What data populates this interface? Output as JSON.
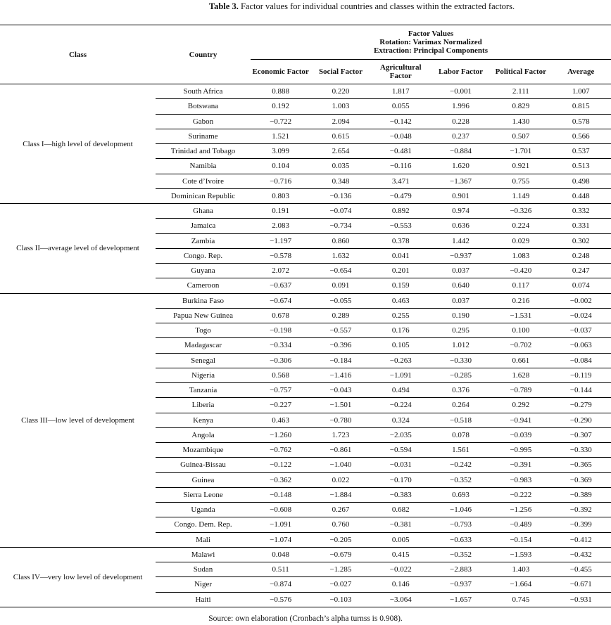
{
  "title": {
    "label": "Table 3.",
    "text": "Factor values for individual countries and classes within the extracted factors."
  },
  "header": {
    "class": "Class",
    "country": "Country",
    "factor_values": [
      "Factor Values",
      "Rotation: Varimax Normalized",
      "Extraction: Principal Components"
    ],
    "columns": [
      "Economic Factor",
      "Social Factor",
      "Agricultural Factor",
      "Labor Factor",
      "Political Factor",
      "Average"
    ]
  },
  "groups": [
    {
      "class": "Class I—high level of development",
      "rows": [
        {
          "country": "South Africa",
          "values": [
            "0.888",
            "0.220",
            "1.817",
            "−0.001",
            "2.111",
            "1.007"
          ]
        },
        {
          "country": "Botswana",
          "values": [
            "0.192",
            "1.003",
            "0.055",
            "1.996",
            "0.829",
            "0.815"
          ]
        },
        {
          "country": "Gabon",
          "values": [
            "−0.722",
            "2.094",
            "−0.142",
            "0.228",
            "1.430",
            "0.578"
          ]
        },
        {
          "country": "Suriname",
          "values": [
            "1.521",
            "0.615",
            "−0.048",
            "0.237",
            "0.507",
            "0.566"
          ]
        },
        {
          "country": "Trinidad and Tobago",
          "values": [
            "3.099",
            "2.654",
            "−0.481",
            "−0.884",
            "−1.701",
            "0.537"
          ]
        },
        {
          "country": "Namibia",
          "values": [
            "0.104",
            "0.035",
            "−0.116",
            "1.620",
            "0.921",
            "0.513"
          ]
        },
        {
          "country": "Cote d’Ivoire",
          "values": [
            "−0.716",
            "0.348",
            "3.471",
            "−1.367",
            "0.755",
            "0.498"
          ]
        },
        {
          "country": "Dominican Republic",
          "values": [
            "0.803",
            "−0.136",
            "−0.479",
            "0.901",
            "1.149",
            "0.448"
          ]
        }
      ]
    },
    {
      "class": "Class II—average level of development",
      "rows": [
        {
          "country": "Ghana",
          "values": [
            "0.191",
            "−0.074",
            "0.892",
            "0.974",
            "−0.326",
            "0.332"
          ]
        },
        {
          "country": "Jamaica",
          "values": [
            "2.083",
            "−0.734",
            "−0.553",
            "0.636",
            "0.224",
            "0.331"
          ]
        },
        {
          "country": "Zambia",
          "values": [
            "−1.197",
            "0.860",
            "0.378",
            "1.442",
            "0.029",
            "0.302"
          ]
        },
        {
          "country": "Congo. Rep.",
          "values": [
            "−0.578",
            "1.632",
            "0.041",
            "−0.937",
            "1.083",
            "0.248"
          ]
        },
        {
          "country": "Guyana",
          "values": [
            "2.072",
            "−0.654",
            "0.201",
            "0.037",
            "−0.420",
            "0.247"
          ]
        },
        {
          "country": "Cameroon",
          "values": [
            "−0.637",
            "0.091",
            "0.159",
            "0.640",
            "0.117",
            "0.074"
          ]
        }
      ]
    },
    {
      "class": "Class III—low level of development",
      "rows": [
        {
          "country": "Burkina Faso",
          "values": [
            "−0.674",
            "−0.055",
            "0.463",
            "0.037",
            "0.216",
            "−0.002"
          ]
        },
        {
          "country": "Papua New Guinea",
          "values": [
            "0.678",
            "0.289",
            "0.255",
            "0.190",
            "−1.531",
            "−0.024"
          ]
        },
        {
          "country": "Togo",
          "values": [
            "−0.198",
            "−0.557",
            "0.176",
            "0.295",
            "0.100",
            "−0.037"
          ]
        },
        {
          "country": "Madagascar",
          "values": [
            "−0.334",
            "−0.396",
            "0.105",
            "1.012",
            "−0.702",
            "−0.063"
          ]
        },
        {
          "country": "Senegal",
          "values": [
            "−0.306",
            "−0.184",
            "−0.263",
            "−0.330",
            "0.661",
            "−0.084"
          ]
        },
        {
          "country": "Nigeria",
          "values": [
            "0.568",
            "−1.416",
            "−1.091",
            "−0.285",
            "1.628",
            "−0.119"
          ]
        },
        {
          "country": "Tanzania",
          "values": [
            "−0.757",
            "−0.043",
            "0.494",
            "0.376",
            "−0.789",
            "−0.144"
          ]
        },
        {
          "country": "Liberia",
          "values": [
            "−0.227",
            "−1.501",
            "−0.224",
            "0.264",
            "0.292",
            "−0.279"
          ]
        },
        {
          "country": "Kenya",
          "values": [
            "0.463",
            "−0.780",
            "0.324",
            "−0.518",
            "−0.941",
            "−0.290"
          ]
        },
        {
          "country": "Angola",
          "values": [
            "−1.260",
            "1.723",
            "−2.035",
            "0.078",
            "−0.039",
            "−0.307"
          ]
        },
        {
          "country": "Mozambique",
          "values": [
            "−0.762",
            "−0.861",
            "−0.594",
            "1.561",
            "−0.995",
            "−0.330"
          ]
        },
        {
          "country": "Guinea-Bissau",
          "values": [
            "−0.122",
            "−1.040",
            "−0.031",
            "−0.242",
            "−0.391",
            "−0.365"
          ]
        },
        {
          "country": "Guinea",
          "values": [
            "−0.362",
            "0.022",
            "−0.170",
            "−0.352",
            "−0.983",
            "−0.369"
          ]
        },
        {
          "country": "Sierra Leone",
          "values": [
            "−0.148",
            "−1.884",
            "−0.383",
            "0.693",
            "−0.222",
            "−0.389"
          ]
        },
        {
          "country": "Uganda",
          "values": [
            "−0.608",
            "0.267",
            "0.682",
            "−1.046",
            "−1.256",
            "−0.392"
          ]
        },
        {
          "country": "Congo. Dem. Rep.",
          "values": [
            "−1.091",
            "0.760",
            "−0.381",
            "−0.793",
            "−0.489",
            "−0.399"
          ]
        },
        {
          "country": "Mali",
          "values": [
            "−1.074",
            "−0.205",
            "0.005",
            "−0.633",
            "−0.154",
            "−0.412"
          ]
        }
      ]
    },
    {
      "class": "Class IV—very low level of development",
      "rows": [
        {
          "country": "Malawi",
          "values": [
            "0.048",
            "−0.679",
            "0.415",
            "−0.352",
            "−1.593",
            "−0.432"
          ]
        },
        {
          "country": "Sudan",
          "values": [
            "0.511",
            "−1.285",
            "−0.022",
            "−2.883",
            "1.403",
            "−0.455"
          ]
        },
        {
          "country": "Niger",
          "values": [
            "−0.874",
            "−0.027",
            "0.146",
            "−0.937",
            "−1.664",
            "−0.671"
          ]
        },
        {
          "country": "Haiti",
          "values": [
            "−0.576",
            "−0.103",
            "−3.064",
            "−1.657",
            "0.745",
            "−0.931"
          ]
        }
      ]
    }
  ],
  "source": "Source: own elaboration (Cronbach’s alpha turnss is 0.908)."
}
